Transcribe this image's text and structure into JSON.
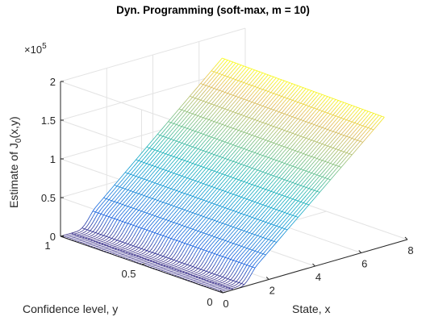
{
  "chart_data": {
    "type": "surface",
    "title": "Dyn. Programming (soft-max, m = 10)",
    "xlabel": "State, x",
    "ylabel": "Confidence level, y",
    "zlabel_base": "Estimate of J",
    "zlabel_sub": "0",
    "zlabel_tail": "(x,y)",
    "z_exponent_base": "×10",
    "z_exponent_power": "5",
    "xlim": [
      0,
      8
    ],
    "ylim": [
      0,
      1
    ],
    "zlim": [
      0,
      200000
    ],
    "x_ticks": [
      0,
      2,
      4,
      6,
      8
    ],
    "x_tick_labels": [
      "0",
      "2",
      "4",
      "6",
      "8"
    ],
    "y_ticks": [
      0,
      0.5,
      1
    ],
    "y_tick_labels": [
      "0",
      "0.5",
      "1"
    ],
    "z_ticks": [
      0,
      50000,
      100000,
      150000,
      200000
    ],
    "z_tick_labels": [
      "0",
      "0.5",
      "1",
      "1.5",
      "2"
    ],
    "grid": true,
    "colormap": "parula",
    "surface_summary": {
      "x_range": [
        0,
        7
      ],
      "z_at_x0": 0,
      "z_at_x7": 170000,
      "ramp_start_x": 0.6,
      "ramp_end_x": 1.5,
      "dependence_on_y": "nearly none"
    }
  }
}
